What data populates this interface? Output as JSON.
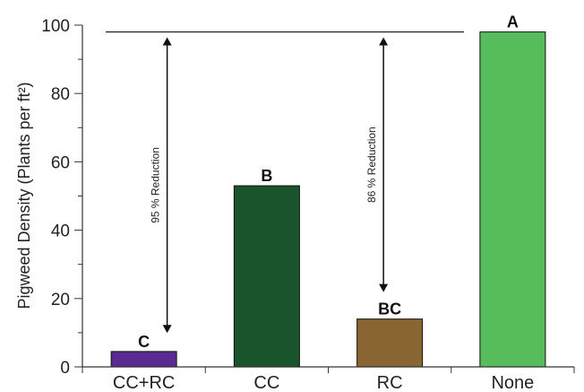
{
  "chart_data": {
    "type": "bar",
    "ylabel": "Pigweed Density (Plants per ft²)",
    "ylim": [
      0,
      100
    ],
    "yticks": [
      0,
      20,
      40,
      60,
      80,
      100
    ],
    "categories": [
      "CC+RC",
      "CC",
      "RC",
      "None"
    ],
    "values": [
      4.5,
      53,
      14,
      98
    ],
    "colors": [
      "#5b2a91",
      "#19542c",
      "#8a6534",
      "#57bd5c"
    ],
    "letters": [
      "C",
      "B",
      "BC",
      "A"
    ],
    "reference_line": 98,
    "annotations": [
      {
        "text": "95 % Reduction",
        "category": "CC+RC",
        "from": 98,
        "to": 4.5
      },
      {
        "text": "86 % Reduction",
        "category": "RC",
        "from": 98,
        "to": 14
      }
    ]
  }
}
